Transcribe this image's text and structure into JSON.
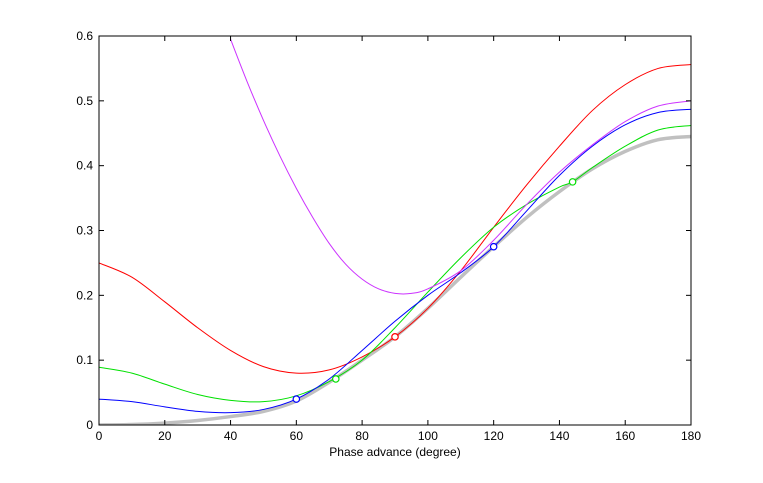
{
  "chart_data": {
    "type": "line",
    "title": "",
    "xlabel": "Phase advance (degree)",
    "ylabel": "",
    "xlim": [
      0,
      180
    ],
    "ylim": [
      0,
      0.6
    ],
    "xticks": [
      0,
      20,
      40,
      60,
      80,
      100,
      120,
      140,
      160,
      180
    ],
    "yticks": [
      0,
      0.1,
      0.2,
      0.3,
      0.4,
      0.5,
      0.6
    ],
    "xtick_labels": [
      "0",
      "20",
      "40",
      "60",
      "80",
      "100",
      "120",
      "140",
      "160",
      "180"
    ],
    "ytick_labels": [
      "0",
      "0.1",
      "0.2",
      "0.3",
      "0.4",
      "0.5",
      "0.6"
    ],
    "grid": false,
    "legend": "none",
    "series": [
      {
        "color": "#c0c0c0",
        "linewidth": "thick",
        "x": [
          0,
          10,
          20,
          30,
          40,
          50,
          60,
          70,
          80,
          90,
          100,
          110,
          120,
          130,
          140,
          150,
          160,
          170,
          180
        ],
        "y": [
          0,
          0.0007,
          0.003,
          0.007,
          0.013,
          0.021,
          0.037,
          0.066,
          0.1,
          0.136,
          0.18,
          0.228,
          0.275,
          0.32,
          0.36,
          0.395,
          0.422,
          0.44,
          0.445
        ],
        "markers": []
      },
      {
        "color": "#ff0000",
        "x": [
          0,
          10,
          20,
          30,
          40,
          50,
          60,
          70,
          80,
          90,
          100,
          110,
          120,
          130,
          140,
          150,
          160,
          170,
          180
        ],
        "y": [
          0.25,
          0.228,
          0.19,
          0.15,
          0.115,
          0.09,
          0.08,
          0.085,
          0.105,
          0.136,
          0.18,
          0.238,
          0.305,
          0.37,
          0.43,
          0.485,
          0.525,
          0.55,
          0.556
        ],
        "markers": [
          {
            "x": 90,
            "y": 0.136
          }
        ]
      },
      {
        "color": "#00e000",
        "x": [
          0,
          10,
          20,
          30,
          40,
          50,
          60,
          70,
          80,
          90,
          100,
          110,
          120,
          130,
          140,
          144,
          150,
          160,
          170,
          180
        ],
        "y": [
          0.089,
          0.08,
          0.063,
          0.047,
          0.038,
          0.036,
          0.045,
          0.067,
          0.1,
          0.15,
          0.205,
          0.258,
          0.305,
          0.34,
          0.367,
          0.375,
          0.397,
          0.43,
          0.455,
          0.462
        ],
        "markers": [
          {
            "x": 72,
            "y": 0.071
          },
          {
            "x": 144,
            "y": 0.375
          }
        ]
      },
      {
        "color": "#0000ff",
        "x": [
          0,
          10,
          20,
          30,
          40,
          50,
          60,
          70,
          80,
          90,
          100,
          110,
          120,
          130,
          140,
          150,
          160,
          170,
          180
        ],
        "y": [
          0.04,
          0.036,
          0.028,
          0.021,
          0.019,
          0.024,
          0.04,
          0.071,
          0.115,
          0.16,
          0.2,
          0.235,
          0.275,
          0.33,
          0.385,
          0.43,
          0.463,
          0.482,
          0.487
        ],
        "markers": [
          {
            "x": 60,
            "y": 0.04
          },
          {
            "x": 120,
            "y": 0.275
          }
        ]
      },
      {
        "color": "#cc33ff",
        "x": [
          40,
          45,
          50,
          55,
          60,
          65,
          70,
          75,
          80,
          85,
          90,
          95,
          100,
          110,
          120,
          130,
          140,
          150,
          160,
          170,
          180
        ],
        "y": [
          0.595,
          0.53,
          0.47,
          0.415,
          0.365,
          0.32,
          0.28,
          0.248,
          0.225,
          0.21,
          0.203,
          0.203,
          0.21,
          0.238,
          0.285,
          0.34,
          0.39,
          0.432,
          0.468,
          0.492,
          0.5
        ],
        "markers": []
      }
    ]
  }
}
